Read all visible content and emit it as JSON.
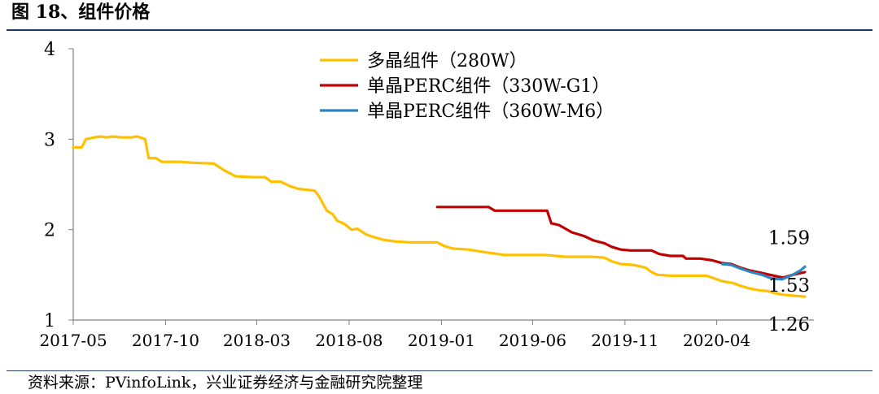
{
  "figure_title": "图 18、组件价格",
  "source_note": "资料来源：PVinfoLink，兴业证券经济与金融研究院整理",
  "chart_data": {
    "type": "line",
    "title": "",
    "xlabel": "",
    "ylabel": "",
    "ylim": [
      1,
      4
    ],
    "yticks": [
      "1",
      "2",
      "3",
      "4"
    ],
    "x_tick_labels": [
      "2017-05",
      "2017-10",
      "2018-03",
      "2018-08",
      "2019-01",
      "2019-06",
      "2019-11",
      "2020-04"
    ],
    "grid": false,
    "legend_position": "top-right",
    "series": [
      {
        "name": "多晶组件（280W）",
        "color": "#ffc000",
        "points": [
          [
            "2017-05-01",
            2.91
          ],
          [
            "2017-05-15",
            2.91
          ],
          [
            "2017-05-22",
            3.0
          ],
          [
            "2017-06-05",
            3.02
          ],
          [
            "2017-06-15",
            3.03
          ],
          [
            "2017-06-25",
            3.02
          ],
          [
            "2017-07-05",
            3.03
          ],
          [
            "2017-07-20",
            3.02
          ],
          [
            "2017-08-05",
            3.02
          ],
          [
            "2017-08-15",
            3.03
          ],
          [
            "2017-08-28",
            3.0
          ],
          [
            "2017-09-03",
            2.79
          ],
          [
            "2017-09-15",
            2.79
          ],
          [
            "2017-09-25",
            2.75
          ],
          [
            "2017-10-25",
            2.75
          ],
          [
            "2017-11-15",
            2.74
          ],
          [
            "2017-12-20",
            2.73
          ],
          [
            "2018-01-05",
            2.66
          ],
          [
            "2018-01-25",
            2.59
          ],
          [
            "2018-02-25",
            2.58
          ],
          [
            "2018-03-15",
            2.58
          ],
          [
            "2018-03-25",
            2.53
          ],
          [
            "2018-04-10",
            2.53
          ],
          [
            "2018-04-25",
            2.48
          ],
          [
            "2018-05-10",
            2.45
          ],
          [
            "2018-05-25",
            2.44
          ],
          [
            "2018-06-05",
            2.43
          ],
          [
            "2018-06-12",
            2.37
          ],
          [
            "2018-06-25",
            2.21
          ],
          [
            "2018-07-05",
            2.17
          ],
          [
            "2018-07-12",
            2.1
          ],
          [
            "2018-07-25",
            2.06
          ],
          [
            "2018-08-05",
            2.0
          ],
          [
            "2018-08-15",
            2.01
          ],
          [
            "2018-08-28",
            1.95
          ],
          [
            "2018-09-10",
            1.92
          ],
          [
            "2018-09-25",
            1.89
          ],
          [
            "2018-10-15",
            1.87
          ],
          [
            "2018-11-10",
            1.86
          ],
          [
            "2018-12-25",
            1.86
          ],
          [
            "2019-01-05",
            1.82
          ],
          [
            "2019-01-20",
            1.79
          ],
          [
            "2019-02-15",
            1.78
          ],
          [
            "2019-03-05",
            1.76
          ],
          [
            "2019-03-25",
            1.74
          ],
          [
            "2019-04-15",
            1.72
          ],
          [
            "2019-05-10",
            1.72
          ],
          [
            "2019-06-20",
            1.72
          ],
          [
            "2019-07-10",
            1.71
          ],
          [
            "2019-07-25",
            1.7
          ],
          [
            "2019-09-10",
            1.7
          ],
          [
            "2019-09-28",
            1.69
          ],
          [
            "2019-10-10",
            1.65
          ],
          [
            "2019-10-25",
            1.62
          ],
          [
            "2019-11-15",
            1.61
          ],
          [
            "2019-12-05",
            1.58
          ],
          [
            "2019-12-15",
            1.53
          ],
          [
            "2019-12-25",
            1.5
          ],
          [
            "2020-01-15",
            1.49
          ],
          [
            "2020-03-15",
            1.49
          ],
          [
            "2020-03-28",
            1.46
          ],
          [
            "2020-04-10",
            1.43
          ],
          [
            "2020-04-28",
            1.41
          ],
          [
            "2020-05-10",
            1.38
          ],
          [
            "2020-05-25",
            1.35
          ],
          [
            "2020-06-10",
            1.33
          ],
          [
            "2020-06-25",
            1.32
          ],
          [
            "2020-07-05",
            1.3
          ],
          [
            "2020-07-20",
            1.28
          ],
          [
            "2020-08-05",
            1.27
          ],
          [
            "2020-08-25",
            1.26
          ]
        ]
      },
      {
        "name": "单晶PERC组件（330W-G1）",
        "color": "#c00000",
        "points": [
          [
            "2018-12-25",
            2.25
          ],
          [
            "2019-03-20",
            2.25
          ],
          [
            "2019-03-30",
            2.21
          ],
          [
            "2019-06-25",
            2.21
          ],
          [
            "2019-07-02",
            2.07
          ],
          [
            "2019-07-15",
            2.05
          ],
          [
            "2019-08-05",
            1.97
          ],
          [
            "2019-08-25",
            1.93
          ],
          [
            "2019-09-10",
            1.88
          ],
          [
            "2019-09-28",
            1.85
          ],
          [
            "2019-10-10",
            1.81
          ],
          [
            "2019-10-25",
            1.78
          ],
          [
            "2019-11-10",
            1.77
          ],
          [
            "2019-12-15",
            1.77
          ],
          [
            "2019-12-28",
            1.73
          ],
          [
            "2020-01-15",
            1.71
          ],
          [
            "2020-02-05",
            1.71
          ],
          [
            "2020-02-10",
            1.68
          ],
          [
            "2020-03-05",
            1.68
          ],
          [
            "2020-03-25",
            1.66
          ],
          [
            "2020-04-10",
            1.63
          ],
          [
            "2020-04-25",
            1.62
          ],
          [
            "2020-05-10",
            1.58
          ],
          [
            "2020-05-25",
            1.55
          ],
          [
            "2020-06-15",
            1.52
          ],
          [
            "2020-07-05",
            1.49
          ],
          [
            "2020-07-20",
            1.47
          ],
          [
            "2020-08-05",
            1.5
          ],
          [
            "2020-08-25",
            1.53
          ]
        ]
      },
      {
        "name": "单晶PERC组件（360W-M6）",
        "color": "#2e86c1",
        "points": [
          [
            "2020-04-10",
            1.62
          ],
          [
            "2020-04-25",
            1.61
          ],
          [
            "2020-05-10",
            1.57
          ],
          [
            "2020-05-28",
            1.53
          ],
          [
            "2020-06-15",
            1.5
          ],
          [
            "2020-07-01",
            1.46
          ],
          [
            "2020-07-18",
            1.45
          ],
          [
            "2020-08-05",
            1.5
          ],
          [
            "2020-08-18",
            1.55
          ],
          [
            "2020-08-25",
            1.59
          ]
        ]
      }
    ],
    "annotations": [
      {
        "text": "1.59",
        "series": 2
      },
      {
        "text": "1.53",
        "series": 1
      },
      {
        "text": "1.26",
        "series": 0
      }
    ]
  }
}
